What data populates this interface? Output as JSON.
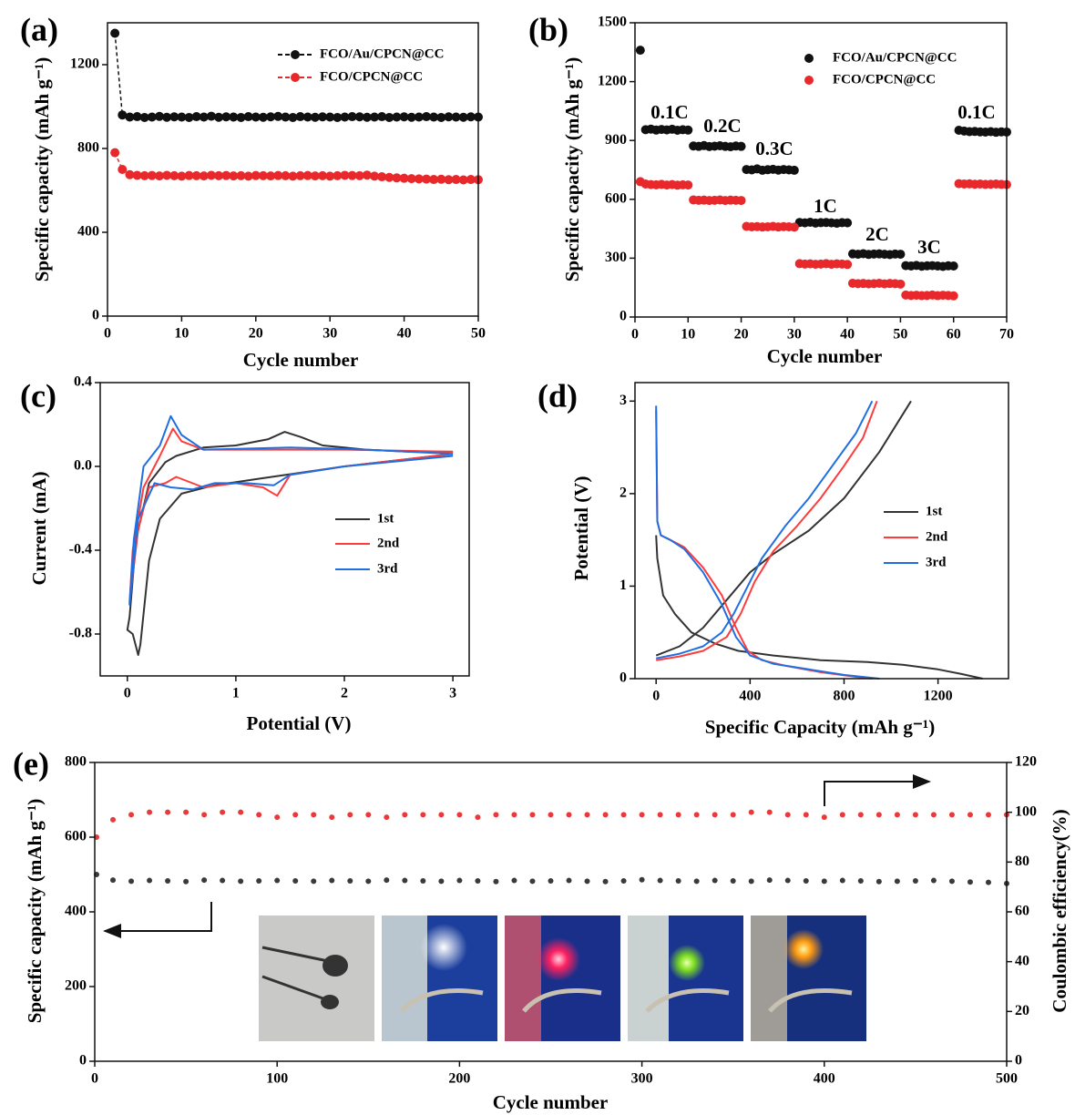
{
  "chart_data": [
    {
      "type": "scatter",
      "title": "(a)",
      "xlabel": "Cycle number",
      "ylabel": "Specific capacity (mAh g⁻¹)",
      "x": [
        1,
        2,
        3,
        4,
        5,
        6,
        7,
        8,
        9,
        10,
        11,
        12,
        13,
        14,
        15,
        16,
        17,
        18,
        19,
        20,
        21,
        22,
        23,
        24,
        25,
        26,
        27,
        28,
        29,
        30,
        31,
        32,
        33,
        34,
        35,
        36,
        37,
        38,
        39,
        40,
        41,
        42,
        43,
        44,
        45,
        46,
        47,
        48,
        49,
        50
      ],
      "series": [
        {
          "name": "FCO/Au/CPCN@CC",
          "color": "#111111",
          "values": [
            1350,
            960,
            950,
            952,
            948,
            950,
            953,
            949,
            951,
            950,
            948,
            952,
            950,
            954,
            949,
            951,
            950,
            948,
            952,
            950,
            949,
            951,
            953,
            950,
            948,
            952,
            950,
            949,
            951,
            950,
            948,
            950,
            952,
            951,
            949,
            950,
            952,
            948,
            950,
            951,
            949,
            950,
            952,
            950,
            948,
            951,
            950,
            949,
            951,
            950
          ]
        },
        {
          "name": "FCO/CPCN@CC",
          "color": "#e8282b",
          "values": [
            780,
            700,
            675,
            672,
            670,
            671,
            669,
            672,
            670,
            668,
            671,
            670,
            669,
            672,
            670,
            671,
            669,
            670,
            668,
            671,
            670,
            669,
            671,
            670,
            668,
            670,
            671,
            669,
            670,
            668,
            670,
            672,
            671,
            670,
            673,
            668,
            665,
            662,
            660,
            658,
            656,
            655,
            654,
            652,
            653,
            651,
            652,
            650,
            652,
            651
          ]
        }
      ],
      "xlim": [
        0,
        50
      ],
      "xticks": [
        0,
        10,
        20,
        30,
        40,
        50
      ],
      "ylim": [
        0,
        1400
      ],
      "yticks": [
        0,
        400,
        800,
        1200
      ]
    },
    {
      "type": "scatter",
      "title": "(b)",
      "xlabel": "Cycle number",
      "ylabel": "Specific capacity (mAh g⁻¹)",
      "x": [
        1,
        2,
        3,
        4,
        5,
        6,
        7,
        8,
        9,
        10,
        11,
        12,
        13,
        14,
        15,
        16,
        17,
        18,
        19,
        20,
        21,
        22,
        23,
        24,
        25,
        26,
        27,
        28,
        29,
        30,
        31,
        32,
        33,
        34,
        35,
        36,
        37,
        38,
        39,
        40,
        41,
        42,
        43,
        44,
        45,
        46,
        47,
        48,
        49,
        50,
        51,
        52,
        53,
        54,
        55,
        56,
        57,
        58,
        59,
        60,
        61,
        62,
        63,
        64,
        65,
        66,
        67,
        68,
        69,
        70
      ],
      "series": [
        {
          "name": "FCO/Au/CPCN@CC",
          "color": "#111111",
          "values": [
            1360,
            955,
            958,
            953,
            956,
            954,
            957,
            952,
            955,
            953,
            872,
            870,
            874,
            869,
            871,
            873,
            870,
            868,
            872,
            870,
            752,
            750,
            755,
            748,
            751,
            753,
            749,
            752,
            750,
            748,
            482,
            480,
            483,
            479,
            481,
            482,
            480,
            478,
            481,
            480,
            322,
            320,
            323,
            319,
            321,
            322,
            320,
            318,
            321,
            320,
            262,
            260,
            263,
            259,
            261,
            262,
            260,
            258,
            261,
            260,
            952,
            948,
            945,
            946,
            944,
            943,
            945,
            942,
            944,
            943
          ]
        },
        {
          "name": "FCO/CPCN@CC",
          "color": "#e8282b",
          "values": [
            690,
            678,
            675,
            674,
            676,
            673,
            675,
            672,
            674,
            673,
            597,
            595,
            596,
            594,
            595,
            597,
            594,
            596,
            595,
            594,
            462,
            460,
            461,
            459,
            460,
            462,
            459,
            461,
            460,
            458,
            272,
            270,
            271,
            269,
            270,
            272,
            269,
            271,
            270,
            268,
            172,
            170,
            171,
            169,
            170,
            172,
            169,
            171,
            170,
            168,
            112,
            110,
            111,
            109,
            110,
            112,
            109,
            111,
            110,
            108,
            680,
            678,
            679,
            677,
            678,
            676,
            677,
            678,
            676,
            675
          ]
        }
      ],
      "annotations": [
        "0.1C",
        "0.2C",
        "0.3C",
        "1C",
        "2C",
        "3C",
        "0.1C"
      ],
      "xlim": [
        0,
        70
      ],
      "xticks": [
        0,
        10,
        20,
        30,
        40,
        50,
        60,
        70
      ],
      "ylim": [
        0,
        1500
      ],
      "yticks": [
        0,
        300,
        600,
        900,
        1200,
        1500
      ]
    },
    {
      "type": "line",
      "title": "(c)",
      "xlabel": "Potential (V)",
      "ylabel": "Current (mA)",
      "series": [
        {
          "name": "1st",
          "color": "#333333",
          "x": [
            3.0,
            2.5,
            2.0,
            1.6,
            1.2,
            0.8,
            0.5,
            0.3,
            0.2,
            0.12,
            0.1,
            0.05,
            0.0,
            0.02,
            0.08,
            0.2,
            0.35,
            0.45,
            0.7,
            1.0,
            1.3,
            1.45,
            1.6,
            1.8,
            2.2,
            2.6,
            3.0
          ],
          "values": [
            0.06,
            0.03,
            0.0,
            -0.03,
            -0.06,
            -0.09,
            -0.13,
            -0.25,
            -0.45,
            -0.85,
            -0.9,
            -0.8,
            -0.78,
            -0.72,
            -0.35,
            -0.08,
            0.02,
            0.05,
            0.09,
            0.1,
            0.13,
            0.165,
            0.14,
            0.1,
            0.08,
            0.07,
            0.07
          ]
        },
        {
          "name": "2nd",
          "color": "#ff3b3b",
          "x": [
            3.0,
            2.0,
            1.5,
            1.38,
            1.25,
            1.0,
            0.7,
            0.45,
            0.35,
            0.2,
            0.1,
            0.02,
            0.05,
            0.15,
            0.3,
            0.42,
            0.5,
            0.7,
            1.2,
            2.0,
            3.0
          ],
          "values": [
            0.06,
            0.0,
            -0.04,
            -0.14,
            -0.1,
            -0.08,
            -0.1,
            -0.05,
            -0.08,
            -0.1,
            -0.3,
            -0.65,
            -0.4,
            -0.1,
            0.05,
            0.18,
            0.12,
            0.08,
            0.08,
            0.08,
            0.07
          ]
        },
        {
          "name": "3rd",
          "color": "#1f6fe0",
          "x": [
            3.0,
            2.0,
            1.5,
            1.35,
            1.1,
            0.8,
            0.6,
            0.4,
            0.25,
            0.1,
            0.02,
            0.06,
            0.15,
            0.3,
            0.4,
            0.5,
            0.7,
            1.5,
            2.2,
            3.0
          ],
          "values": [
            0.05,
            0.0,
            -0.04,
            -0.09,
            -0.08,
            -0.08,
            -0.11,
            -0.1,
            -0.08,
            -0.25,
            -0.66,
            -0.35,
            0.0,
            0.1,
            0.24,
            0.15,
            0.08,
            0.09,
            0.08,
            0.06
          ]
        }
      ],
      "xlim": [
        -0.25,
        3.15
      ],
      "xticks": [
        0,
        1,
        2,
        3
      ],
      "ylim": [
        -1.0,
        0.4
      ],
      "yticks": [
        -0.8,
        -0.4,
        {
          "value": 0,
          "label": "0.0"
        },
        0.4
      ]
    },
    {
      "type": "line",
      "title": "(d)",
      "xlabel": "Specific Capacity (mAh g⁻¹)",
      "ylabel": "Potential (V)",
      "series": [
        {
          "name": "1st",
          "color": "#333333",
          "x": [
            0,
            5,
            30,
            80,
            150,
            250,
            350,
            500,
            700,
            900,
            1050,
            1200,
            1300,
            1390,
            null,
            0,
            100,
            200,
            300,
            400,
            500,
            650,
            800,
            950,
            1085
          ],
          "values": [
            1.55,
            1.3,
            0.9,
            0.7,
            0.5,
            0.38,
            0.3,
            0.25,
            0.2,
            0.18,
            0.15,
            0.1,
            0.05,
            0,
            null,
            0.25,
            0.35,
            0.55,
            0.85,
            1.15,
            1.35,
            1.6,
            1.95,
            2.45,
            3.0
          ]
        },
        {
          "name": "2nd",
          "color": "#ff3b3b",
          "x": [
            0,
            5,
            20,
            60,
            120,
            200,
            280,
            340,
            390,
            450,
            550,
            700,
            850,
            920,
            null,
            0,
            100,
            200,
            300,
            360,
            420,
            500,
            600,
            700,
            800,
            880,
            940
          ],
          "values": [
            2.9,
            1.7,
            1.55,
            1.5,
            1.42,
            1.2,
            0.9,
            0.55,
            0.3,
            0.2,
            0.14,
            0.07,
            0.02,
            0,
            null,
            0.2,
            0.24,
            0.3,
            0.45,
            0.7,
            1.05,
            1.38,
            1.65,
            1.95,
            2.3,
            2.6,
            3.0
          ]
        },
        {
          "name": "3rd",
          "color": "#1f6fe0",
          "x": [
            0,
            5,
            20,
            60,
            120,
            200,
            280,
            340,
            400,
            500,
            650,
            800,
            950,
            null,
            0,
            100,
            200,
            280,
            330,
            390,
            450,
            550,
            650,
            750,
            850,
            920
          ],
          "values": [
            2.95,
            1.7,
            1.55,
            1.5,
            1.4,
            1.15,
            0.8,
            0.45,
            0.25,
            0.16,
            0.1,
            0.04,
            0,
            null,
            0.22,
            0.27,
            0.35,
            0.5,
            0.7,
            1.0,
            1.3,
            1.65,
            1.95,
            2.3,
            2.65,
            3.0
          ]
        }
      ],
      "xlim": [
        -90,
        1500
      ],
      "xticks": [
        0,
        400,
        800,
        1200
      ],
      "ylim": [
        0,
        3.2
      ],
      "yticks": [
        0,
        1,
        2,
        3
      ]
    },
    {
      "type": "scatter",
      "title": "(e)",
      "xlabel": "Cycle number",
      "ylabel": "Specific capacity (mAh g⁻¹)",
      "y2label": "Coulombic efficiency(%)",
      "x": [
        1,
        10,
        20,
        30,
        40,
        50,
        60,
        70,
        80,
        90,
        100,
        110,
        120,
        130,
        140,
        150,
        160,
        170,
        180,
        190,
        200,
        210,
        220,
        230,
        240,
        250,
        260,
        270,
        280,
        290,
        300,
        310,
        320,
        330,
        340,
        350,
        360,
        370,
        380,
        390,
        400,
        410,
        420,
        430,
        440,
        450,
        460,
        470,
        480,
        490,
        500
      ],
      "series": [
        {
          "color": "#3a3a3a",
          "values": [
            500,
            485,
            482,
            484,
            483,
            481,
            485,
            484,
            482,
            483,
            484,
            483,
            482,
            484,
            483,
            482,
            485,
            484,
            483,
            482,
            484,
            483,
            481,
            484,
            482,
            483,
            484,
            482,
            481,
            483,
            486,
            484,
            483,
            482,
            484,
            483,
            482,
            485,
            484,
            483,
            482,
            484,
            483,
            481,
            482,
            483,
            484,
            482,
            480,
            479,
            476
          ]
        },
        {
          "color": "#e83a3a",
          "axis": "y2",
          "values": [
            90,
            97,
            99,
            100,
            100,
            100,
            99,
            100,
            100,
            99,
            98,
            99,
            99,
            98,
            99,
            99,
            98,
            99,
            99,
            99,
            99,
            98,
            99,
            99,
            99,
            99,
            99,
            99,
            99,
            99,
            99,
            99,
            99,
            99,
            99,
            99,
            100,
            100,
            99,
            99,
            98,
            99,
            99,
            99,
            99,
            99,
            99,
            99,
            99,
            99,
            99
          ]
        }
      ],
      "xlim": [
        0,
        500
      ],
      "xticks": [
        0,
        100,
        200,
        300,
        400,
        500
      ],
      "ylim": [
        0,
        800
      ],
      "yticks": [
        0,
        200,
        400,
        600,
        800
      ],
      "y2lim": [
        0,
        120
      ],
      "y2ticks": [
        0,
        20,
        40,
        60,
        80,
        100,
        120
      ]
    }
  ]
}
